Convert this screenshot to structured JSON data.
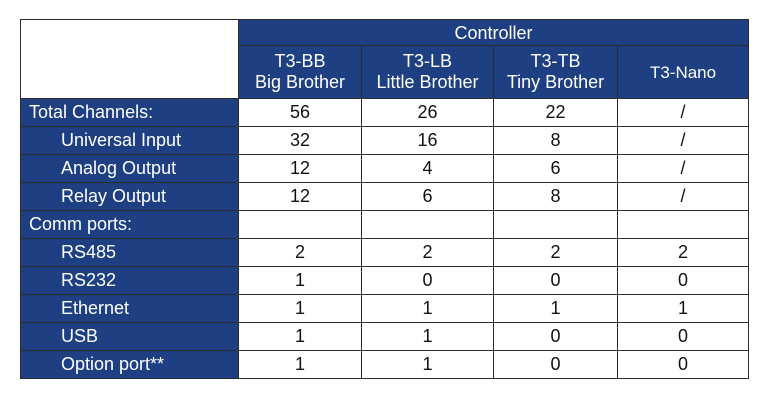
{
  "header": {
    "group_label": "Controller"
  },
  "models": [
    {
      "code": "T3-BB",
      "name": "Big Brother"
    },
    {
      "code": "T3-LB",
      "name": "Little Brother"
    },
    {
      "code": "T3-TB",
      "name": "Tiny Brother"
    },
    {
      "code": "T3-Nano",
      "name": ""
    }
  ],
  "rows": [
    {
      "label": "Total Channels:",
      "values": [
        "56",
        "26",
        "22",
        "/"
      ]
    },
    {
      "label": "Universal Input",
      "values": [
        "32",
        "16",
        "8",
        "/"
      ]
    },
    {
      "label": "Analog Output",
      "values": [
        "12",
        "4",
        "6",
        "/"
      ]
    },
    {
      "label": "Relay Output",
      "values": [
        "12",
        "6",
        "8",
        "/"
      ]
    },
    {
      "label": "Comm ports:",
      "values": [
        "",
        "",
        "",
        ""
      ]
    },
    {
      "label": "RS485",
      "values": [
        "2",
        "2",
        "2",
        "2"
      ]
    },
    {
      "label": "RS232",
      "values": [
        "1",
        "0",
        "0",
        "0"
      ]
    },
    {
      "label": "Ethernet",
      "values": [
        "1",
        "1",
        "1",
        "1"
      ]
    },
    {
      "label": "USB",
      "values": [
        "1",
        "1",
        "0",
        "0"
      ]
    },
    {
      "label": "Option port**",
      "values": [
        "1",
        "1",
        "0",
        "0"
      ]
    }
  ],
  "colors": {
    "header_bg": "#1e3f82",
    "header_text": "#ffffff",
    "border": "#2b2b2b"
  }
}
